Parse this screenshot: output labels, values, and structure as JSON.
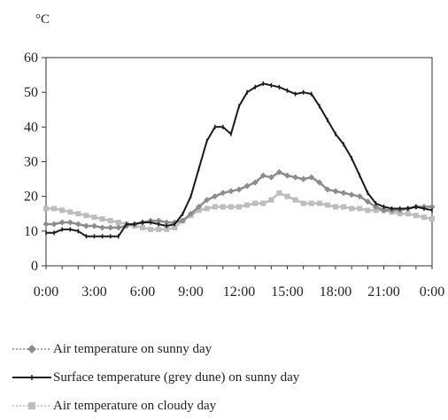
{
  "chart_data": {
    "type": "line",
    "unit_label": "°C",
    "ylim": [
      0,
      60
    ],
    "yticks": [
      0,
      10,
      20,
      30,
      40,
      50,
      60
    ],
    "xlim": [
      0,
      24
    ],
    "xticks": [
      {
        "v": 0,
        "label": "0:00"
      },
      {
        "v": 3,
        "label": "3:00"
      },
      {
        "v": 6,
        "label": "6:00"
      },
      {
        "v": 9,
        "label": "9:00"
      },
      {
        "v": 12,
        "label": "12:00"
      },
      {
        "v": 15,
        "label": "15:00"
      },
      {
        "v": 18,
        "label": "18:00"
      },
      {
        "v": 21,
        "label": "21:00"
      },
      {
        "v": 24,
        "label": "0:00"
      }
    ],
    "grid": false,
    "legend_placement": "bottom",
    "series": [
      {
        "name": "Air temperature on sunny day",
        "color": "#8c8c8c",
        "marker": "diamond",
        "dash": "dotted",
        "x": [
          0,
          0.5,
          1,
          1.5,
          2,
          2.5,
          3,
          3.5,
          4,
          4.5,
          5,
          5.5,
          6,
          6.5,
          7,
          7.5,
          8,
          8.5,
          9,
          9.5,
          10,
          10.5,
          11,
          11.5,
          12,
          12.5,
          13,
          13.5,
          14,
          14.5,
          15,
          15.5,
          16,
          16.5,
          17,
          17.5,
          18,
          18.5,
          19,
          19.5,
          20,
          20.5,
          21,
          21.5,
          22,
          22.5,
          23,
          23.5,
          24
        ],
        "y": [
          12,
          12,
          12.5,
          12.5,
          12,
          11.5,
          11.5,
          11,
          11,
          11,
          11.5,
          12,
          12.5,
          13,
          13,
          12.5,
          12.5,
          13,
          15,
          17,
          19,
          20,
          21,
          21.5,
          22,
          23,
          24,
          26,
          25.5,
          27,
          26,
          25.5,
          25,
          25.5,
          24,
          22,
          21.5,
          21,
          20.5,
          20,
          18.5,
          17,
          16,
          16,
          16,
          16.5,
          17,
          17,
          17
        ]
      },
      {
        "name": "Surface temperature (grey dune) on sunny day",
        "color": "#1a1a1a",
        "marker": "dash",
        "dash": "solid",
        "x": [
          0,
          0.5,
          1,
          1.5,
          2,
          2.5,
          3,
          3.5,
          4,
          4.5,
          5,
          5.5,
          6,
          6.5,
          7,
          7.5,
          8,
          8.5,
          9,
          9.5,
          10,
          10.5,
          11,
          11.5,
          12,
          12.5,
          13,
          13.5,
          14,
          14.5,
          15,
          15.5,
          16,
          16.5,
          17,
          17.5,
          18,
          18.5,
          19,
          19.5,
          20,
          20.5,
          21,
          21.5,
          22,
          22.5,
          23,
          23.5,
          24
        ],
        "y": [
          9.5,
          9.5,
          10.5,
          10.5,
          10,
          8.5,
          8.5,
          8.5,
          8.5,
          8.5,
          12,
          12,
          12.5,
          12.5,
          12,
          11.5,
          12,
          15,
          20,
          28,
          36,
          40,
          40,
          38,
          46,
          50,
          51.5,
          52.5,
          52,
          51.5,
          50.5,
          49.5,
          50,
          49.5,
          46,
          42,
          38,
          35,
          31,
          26,
          21,
          18,
          17,
          16.5,
          16.5,
          16.5,
          17,
          16.5,
          16
        ]
      },
      {
        "name": "Air temperature on cloudy day",
        "color": "#bdbdbd",
        "marker": "square",
        "dash": "dotted",
        "x": [
          0,
          0.5,
          1,
          1.5,
          2,
          2.5,
          3,
          3.5,
          4,
          4.5,
          5,
          5.5,
          6,
          6.5,
          7,
          7.5,
          8,
          8.5,
          9,
          9.5,
          10,
          10.5,
          11,
          11.5,
          12,
          12.5,
          13,
          13.5,
          14,
          14.5,
          15,
          15.5,
          16,
          16.5,
          17,
          17.5,
          18,
          18.5,
          19,
          19.5,
          20,
          20.5,
          21,
          21.5,
          22,
          22.5,
          23,
          23.5,
          24
        ],
        "y": [
          16.5,
          16.5,
          16,
          15.5,
          15,
          14.5,
          14,
          13.5,
          13,
          12.5,
          12,
          11.5,
          11,
          10.5,
          10.5,
          10.5,
          11,
          13,
          14.5,
          16,
          16.5,
          17,
          17,
          17,
          17,
          17.5,
          18,
          18,
          19,
          21,
          20,
          19,
          18,
          18,
          18,
          17.5,
          17,
          17,
          16.5,
          16.5,
          16,
          16,
          16,
          15.5,
          15,
          15,
          14.5,
          14,
          13.5
        ]
      }
    ]
  }
}
